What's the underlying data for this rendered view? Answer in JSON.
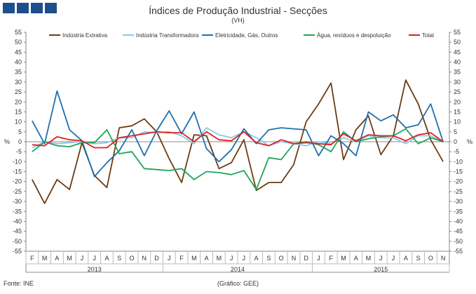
{
  "header": {
    "title": "Índices de Produção Industrial - Secções",
    "subtitle": "(VH)"
  },
  "footer": {
    "source": "Fonte: INE",
    "credit": "(Gráfico: GEE)"
  },
  "chart_data": {
    "type": "line",
    "title": "Índices de Produção Industrial - Secções",
    "subtitle": "(VH)",
    "ylabel": "%",
    "ylim": [
      -55,
      55
    ],
    "ytick_step": 5,
    "grid": false,
    "legend_position": "top",
    "x": [
      "F",
      "M",
      "A",
      "M",
      "J",
      "J",
      "A",
      "S",
      "O",
      "N",
      "D",
      "J",
      "F",
      "M",
      "A",
      "M",
      "J",
      "J",
      "A",
      "S",
      "O",
      "N",
      "D",
      "J",
      "F",
      "M",
      "A",
      "M",
      "J",
      "J",
      "A",
      "S",
      "O",
      "N"
    ],
    "years": [
      {
        "label": "2013",
        "start": 0,
        "end": 10
      },
      {
        "label": "2014",
        "start": 11,
        "end": 22
      },
      {
        "label": "2015",
        "start": 23,
        "end": 33
      }
    ],
    "series": [
      {
        "name": "Indústria Extrativa",
        "color": "#6b3d14",
        "values": [
          -19,
          -31,
          -19,
          -24,
          -0.5,
          -17,
          -23,
          7,
          8,
          11.5,
          5,
          -8.5,
          -20.5,
          3.5,
          3,
          -13.5,
          -10.5,
          1,
          -24.5,
          -20.5,
          -20.5,
          -11.5,
          10,
          19,
          29.5,
          -9,
          6,
          13,
          -6.5,
          3,
          31,
          19,
          1,
          -10
        ]
      },
      {
        "name": "Indústria Transformadora",
        "color": "#8ec8ea",
        "values": [
          -3,
          0,
          -1,
          -0.5,
          0,
          -1,
          -0.5,
          2,
          2,
          5,
          4.5,
          5,
          3,
          -1,
          7,
          3.5,
          2,
          5,
          2,
          -2,
          0,
          -1,
          -2,
          0,
          -1,
          2,
          0,
          3,
          2,
          2,
          -1,
          3,
          3,
          0
        ]
      },
      {
        "name": "Eletricidade, Gás, Outros",
        "color": "#1f6fad",
        "values": [
          10.5,
          -1,
          25.5,
          6,
          0.5,
          -17.5,
          -10.5,
          -4.5,
          6,
          -7,
          5.5,
          15.5,
          4,
          15,
          -3.5,
          -10,
          -4,
          6.5,
          -1,
          6,
          7,
          6.5,
          6,
          -7,
          3,
          -1,
          -7,
          15,
          10.5,
          13.5,
          7,
          8.5,
          19,
          0
        ]
      },
      {
        "name": "Água, resíduos e despoluição",
        "color": "#1fa65a",
        "values": [
          -5,
          0,
          -2,
          -2.5,
          -0.5,
          -0.5,
          6,
          -6,
          -5,
          -13.5,
          -14,
          -14.5,
          -13.5,
          -19,
          -15,
          -15.5,
          -16.5,
          -14.5,
          -24,
          -8,
          -9,
          -1,
          0,
          -1.5,
          -5,
          5,
          0,
          1.5,
          2.5,
          3,
          6.5,
          -1,
          2,
          0
        ]
      },
      {
        "name": "Total",
        "color": "#e02020",
        "values": [
          -1.5,
          -2,
          2.5,
          1,
          0.5,
          -3,
          -3,
          2,
          3,
          4,
          5,
          4.5,
          4.5,
          0,
          5,
          1,
          0.5,
          5,
          -0.5,
          -2,
          1,
          -1,
          -0.5,
          -1,
          -1.5,
          4,
          0.5,
          3.5,
          3,
          3,
          0.5,
          3.5,
          4.5,
          0
        ]
      }
    ]
  }
}
